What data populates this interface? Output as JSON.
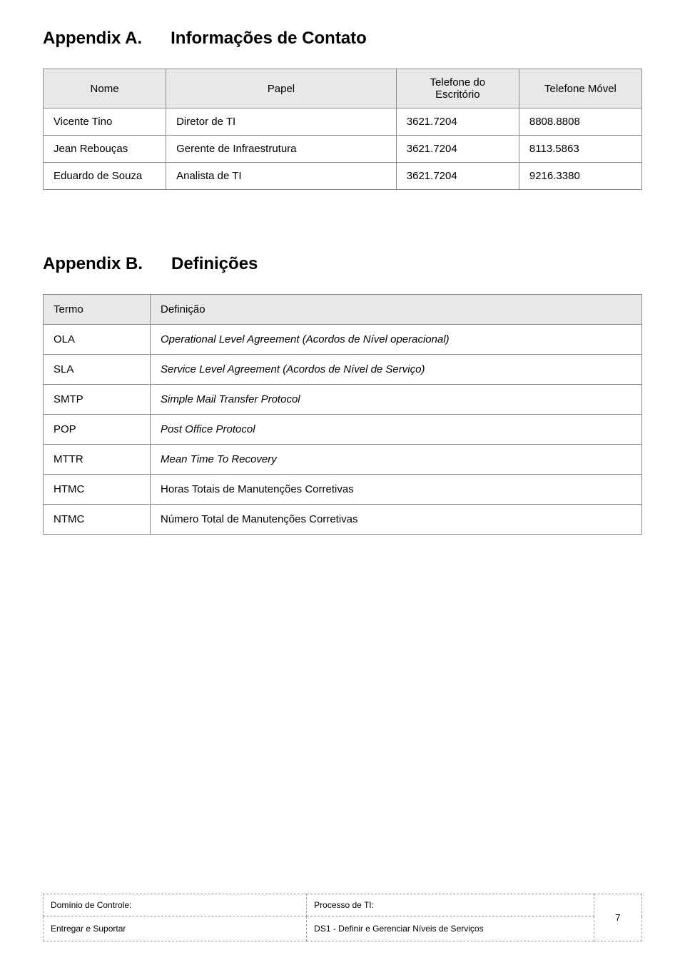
{
  "appendix_a": {
    "prefix": "Appendix A.",
    "title": "Informações de Contato"
  },
  "contact_table": {
    "headers": {
      "nome": "Nome",
      "papel": "Papel",
      "tel_escritorio": "Telefone do Escritório",
      "tel_movel": "Telefone Móvel"
    },
    "rows": [
      {
        "nome": "Vicente Tino",
        "papel": "Diretor de TI",
        "tel1": "3621.7204",
        "tel2": "8808.8808"
      },
      {
        "nome": "Jean Rebouças",
        "papel": "Gerente de Infraestrutura",
        "tel1": "3621.7204",
        "tel2": "8113.5863"
      },
      {
        "nome": "Eduardo de Souza",
        "papel": "Analista de TI",
        "tel1": "3621.7204",
        "tel2": "9216.3380"
      }
    ]
  },
  "appendix_b": {
    "prefix": "Appendix B.",
    "title": "Definições"
  },
  "defs_table": {
    "headers": {
      "termo": "Termo",
      "definicao": "Definição"
    },
    "rows": [
      {
        "termo": "OLA",
        "def": "Operational Level Agreement (Acordos de Nível operacional)",
        "italic": true
      },
      {
        "termo": "SLA",
        "def": "Service Level Agreement (Acordos de Nível de Serviço)",
        "italic": true
      },
      {
        "termo": "SMTP",
        "def": "Simple Mail Transfer Protocol",
        "italic": true
      },
      {
        "termo": "POP",
        "def": "Post Office Protocol",
        "italic": true
      },
      {
        "termo": "MTTR",
        "def": "Mean Time To Recovery",
        "italic": true
      },
      {
        "termo": "HTMC",
        "def": "Horas Totais de Manutenções Corretivas",
        "italic": false
      },
      {
        "termo": "NTMC",
        "def": "Número Total de Manutenções Corretivas",
        "italic": false
      }
    ]
  },
  "footer": {
    "left_label": "Domínio de Controle:",
    "left_value": "Entregar e Suportar",
    "right_label": "Processo de TI:",
    "right_value": "DS1 - Definir e Gerenciar Níveis de Serviços",
    "page_number": "7"
  },
  "colors": {
    "header_bg": "#e8e8e8",
    "border": "#8a8a8a",
    "dashed_border": "#9a9a9a",
    "text": "#000000",
    "background": "#ffffff"
  },
  "fonts": {
    "heading_size_pt": 18,
    "body_size_pt": 11,
    "footer_size_pt": 9
  }
}
